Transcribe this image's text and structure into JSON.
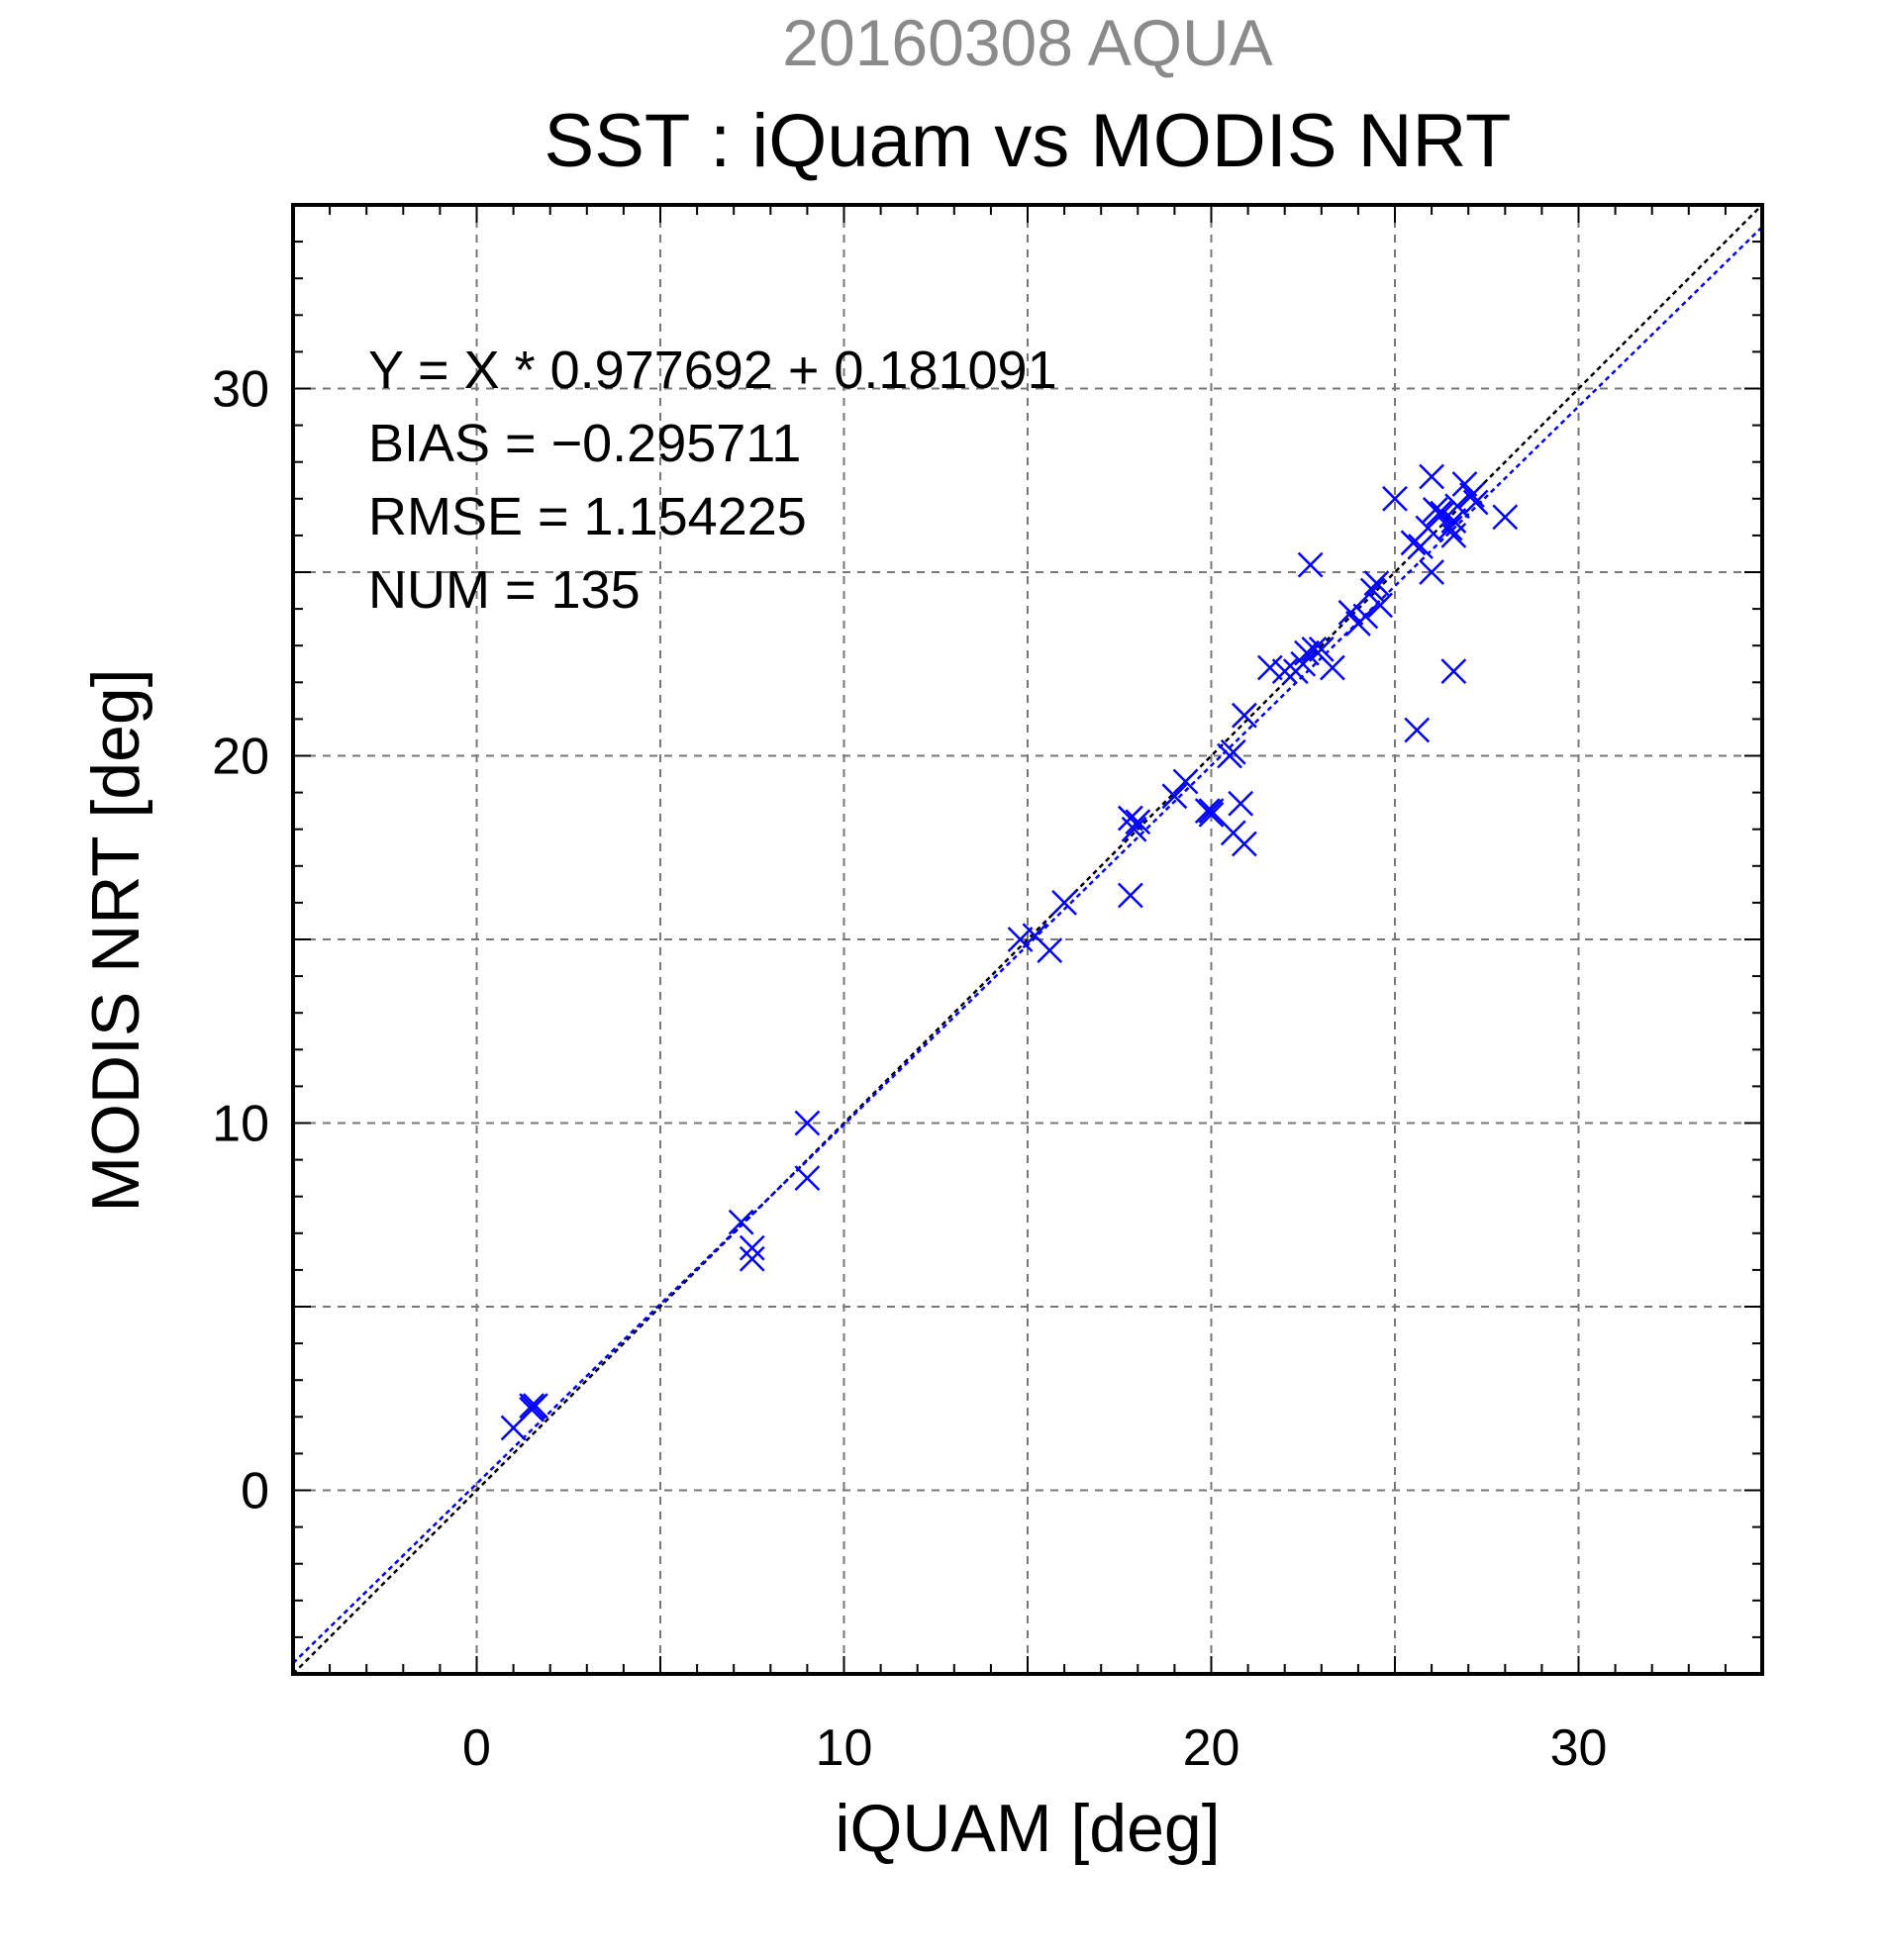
{
  "chart_data": {
    "type": "scatter",
    "supertitle": "20160308 AQUA",
    "title": "SST : iQuam vs MODIS NRT",
    "xlabel": "iQUAM [deg]",
    "ylabel": "MODIS NRT [deg]",
    "xlim": [
      -5,
      35
    ],
    "ylim": [
      -5,
      35
    ],
    "x_ticks": [
      0,
      10,
      20,
      30
    ],
    "y_ticks": [
      0,
      10,
      20,
      30
    ],
    "grid": true,
    "annotations": [
      "Y = X * 0.977692 + 0.181091",
      "BIAS = −0.295711",
      "RMSE = 1.154225",
      "NUM = 135"
    ],
    "reference_line": {
      "slope": 1,
      "intercept": 0,
      "color": "#000000"
    },
    "fit_line": {
      "slope": 0.977692,
      "intercept": 0.181091,
      "color": "#0000ff"
    },
    "series": [
      {
        "marker": "x",
        "color": "#0000ff",
        "points": [
          [
            1.0,
            1.7
          ],
          [
            1.5,
            2.2
          ],
          [
            1.6,
            2.3
          ],
          [
            1.5,
            2.3
          ],
          [
            7.2,
            7.3
          ],
          [
            7.5,
            6.6
          ],
          [
            7.5,
            6.3
          ],
          [
            9.0,
            10.0
          ],
          [
            9.0,
            8.5
          ],
          [
            14.8,
            15.0
          ],
          [
            15.2,
            15.1
          ],
          [
            15.6,
            14.7
          ],
          [
            16.0,
            16.0
          ],
          [
            17.8,
            18.3
          ],
          [
            17.9,
            18.0
          ],
          [
            18.0,
            18.2
          ],
          [
            17.8,
            16.2
          ],
          [
            19.0,
            18.9
          ],
          [
            19.3,
            19.3
          ],
          [
            19.9,
            18.5
          ],
          [
            20.0,
            18.4
          ],
          [
            20.0,
            18.5
          ],
          [
            20.5,
            20.0
          ],
          [
            20.6,
            20.1
          ],
          [
            20.6,
            17.9
          ],
          [
            20.8,
            18.7
          ],
          [
            20.9,
            17.6
          ],
          [
            20.9,
            21.1
          ],
          [
            21.6,
            22.4
          ],
          [
            22.0,
            22.3
          ],
          [
            22.3,
            22.3
          ],
          [
            22.5,
            22.5
          ],
          [
            22.6,
            22.8
          ],
          [
            22.8,
            22.9
          ],
          [
            22.7,
            25.2
          ],
          [
            23.0,
            22.9
          ],
          [
            23.3,
            22.4
          ],
          [
            23.8,
            23.9
          ],
          [
            24.0,
            23.6
          ],
          [
            24.2,
            23.8
          ],
          [
            24.4,
            24.5
          ],
          [
            24.5,
            24.7
          ],
          [
            24.6,
            24.1
          ],
          [
            25.0,
            27.0
          ],
          [
            25.5,
            25.8
          ],
          [
            25.7,
            25.7
          ],
          [
            25.9,
            26.2
          ],
          [
            26.0,
            27.6
          ],
          [
            26.1,
            26.7
          ],
          [
            26.2,
            26.6
          ],
          [
            26.3,
            26.6
          ],
          [
            26.5,
            26.2
          ],
          [
            26.6,
            26.0
          ],
          [
            26.7,
            26.8
          ],
          [
            26.9,
            27.4
          ],
          [
            27.1,
            27.1
          ],
          [
            27.2,
            26.9
          ],
          [
            28.0,
            26.5
          ],
          [
            25.6,
            20.7
          ],
          [
            26.6,
            22.3
          ],
          [
            26.0,
            25.0
          ],
          [
            26.6,
            26.4
          ]
        ]
      }
    ]
  }
}
